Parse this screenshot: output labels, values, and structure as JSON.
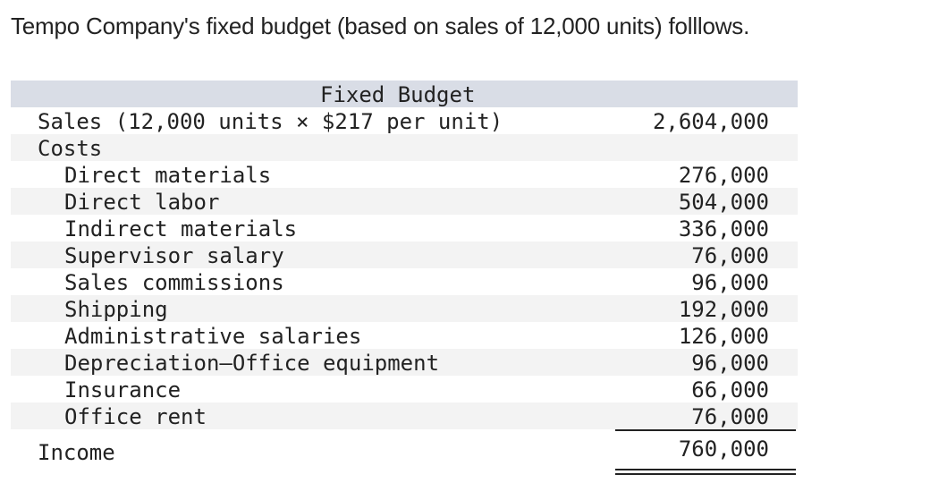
{
  "intro": "Tempo Company's fixed budget (based on sales of 12,000 units) folllows.",
  "budget": {
    "header": "Fixed Budget",
    "sales": {
      "label": "Sales (12,000 units × $217 per unit)",
      "amount": "2,604,000"
    },
    "costs_label": "Costs",
    "costs": [
      {
        "label": "Direct materials",
        "amount": "276,000"
      },
      {
        "label": "Direct labor",
        "amount": "504,000"
      },
      {
        "label": "Indirect materials",
        "amount": "336,000"
      },
      {
        "label": "Supervisor salary",
        "amount": "76,000"
      },
      {
        "label": "Sales commissions",
        "amount": "96,000"
      },
      {
        "label": "Shipping",
        "amount": "192,000"
      },
      {
        "label": "Administrative salaries",
        "amount": "126,000"
      },
      {
        "label": "Depreciation—Office equipment",
        "amount": "96,000"
      },
      {
        "label": "Insurance",
        "amount": "66,000"
      },
      {
        "label": "Office rent",
        "amount": "76,000"
      }
    ],
    "income": {
      "label": "Income",
      "amount": "760,000"
    }
  }
}
